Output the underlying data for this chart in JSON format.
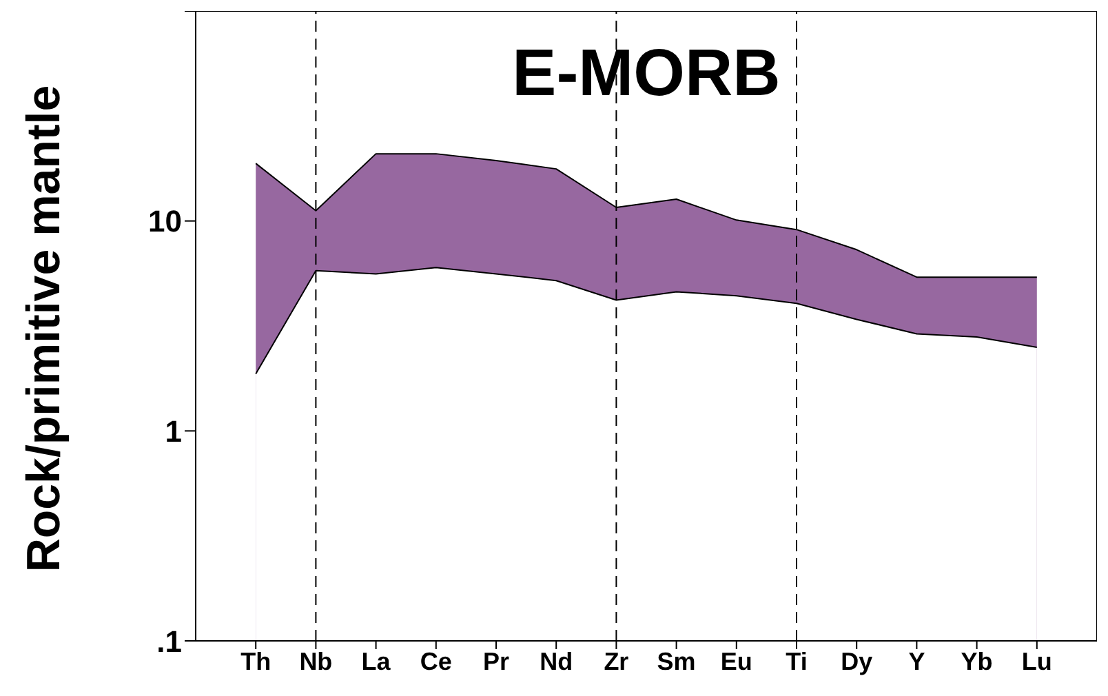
{
  "chart_data": {
    "type": "area",
    "title": "E-MORB",
    "ylabel": "Rock/primitive mantle",
    "categories": [
      "Th",
      "Nb",
      "La",
      "Ce",
      "Pr",
      "Nd",
      "Zr",
      "Sm",
      "Eu",
      "Ti",
      "Dy",
      "Y",
      "Yb",
      "Lu"
    ],
    "series": [
      {
        "color": "#9768a0",
        "values": [
          18.8,
          11.2,
          20.9,
          20.9,
          19.4,
          17.7,
          11.6,
          12.7,
          10.1,
          9.1,
          7.3,
          5.4,
          5.4,
          5.4
        ]
      },
      {
        "color": "#ffffff",
        "values": [
          1.87,
          5.8,
          5.6,
          6.0,
          5.6,
          5.2,
          4.2,
          4.6,
          4.4,
          4.05,
          3.4,
          2.9,
          2.8,
          2.5
        ]
      }
    ],
    "log": "y",
    "ylim": [
      0.1,
      100
    ],
    "yticks": [
      {
        "value": 0.1,
        "label": ".1"
      },
      1,
      10,
      {
        "value": 100,
        "label": null
      }
    ],
    "ref_lines": [
      {
        "axis": "x",
        "value": "Nb",
        "line_style": "dashed",
        "color": "#000000"
      },
      {
        "axis": "x",
        "value": "Zr",
        "line_style": "dashed",
        "color": "#000000"
      },
      {
        "axis": "x",
        "value": "Ti",
        "line_style": "dashed",
        "color": "#000000"
      }
    ],
    "grid": false
  }
}
